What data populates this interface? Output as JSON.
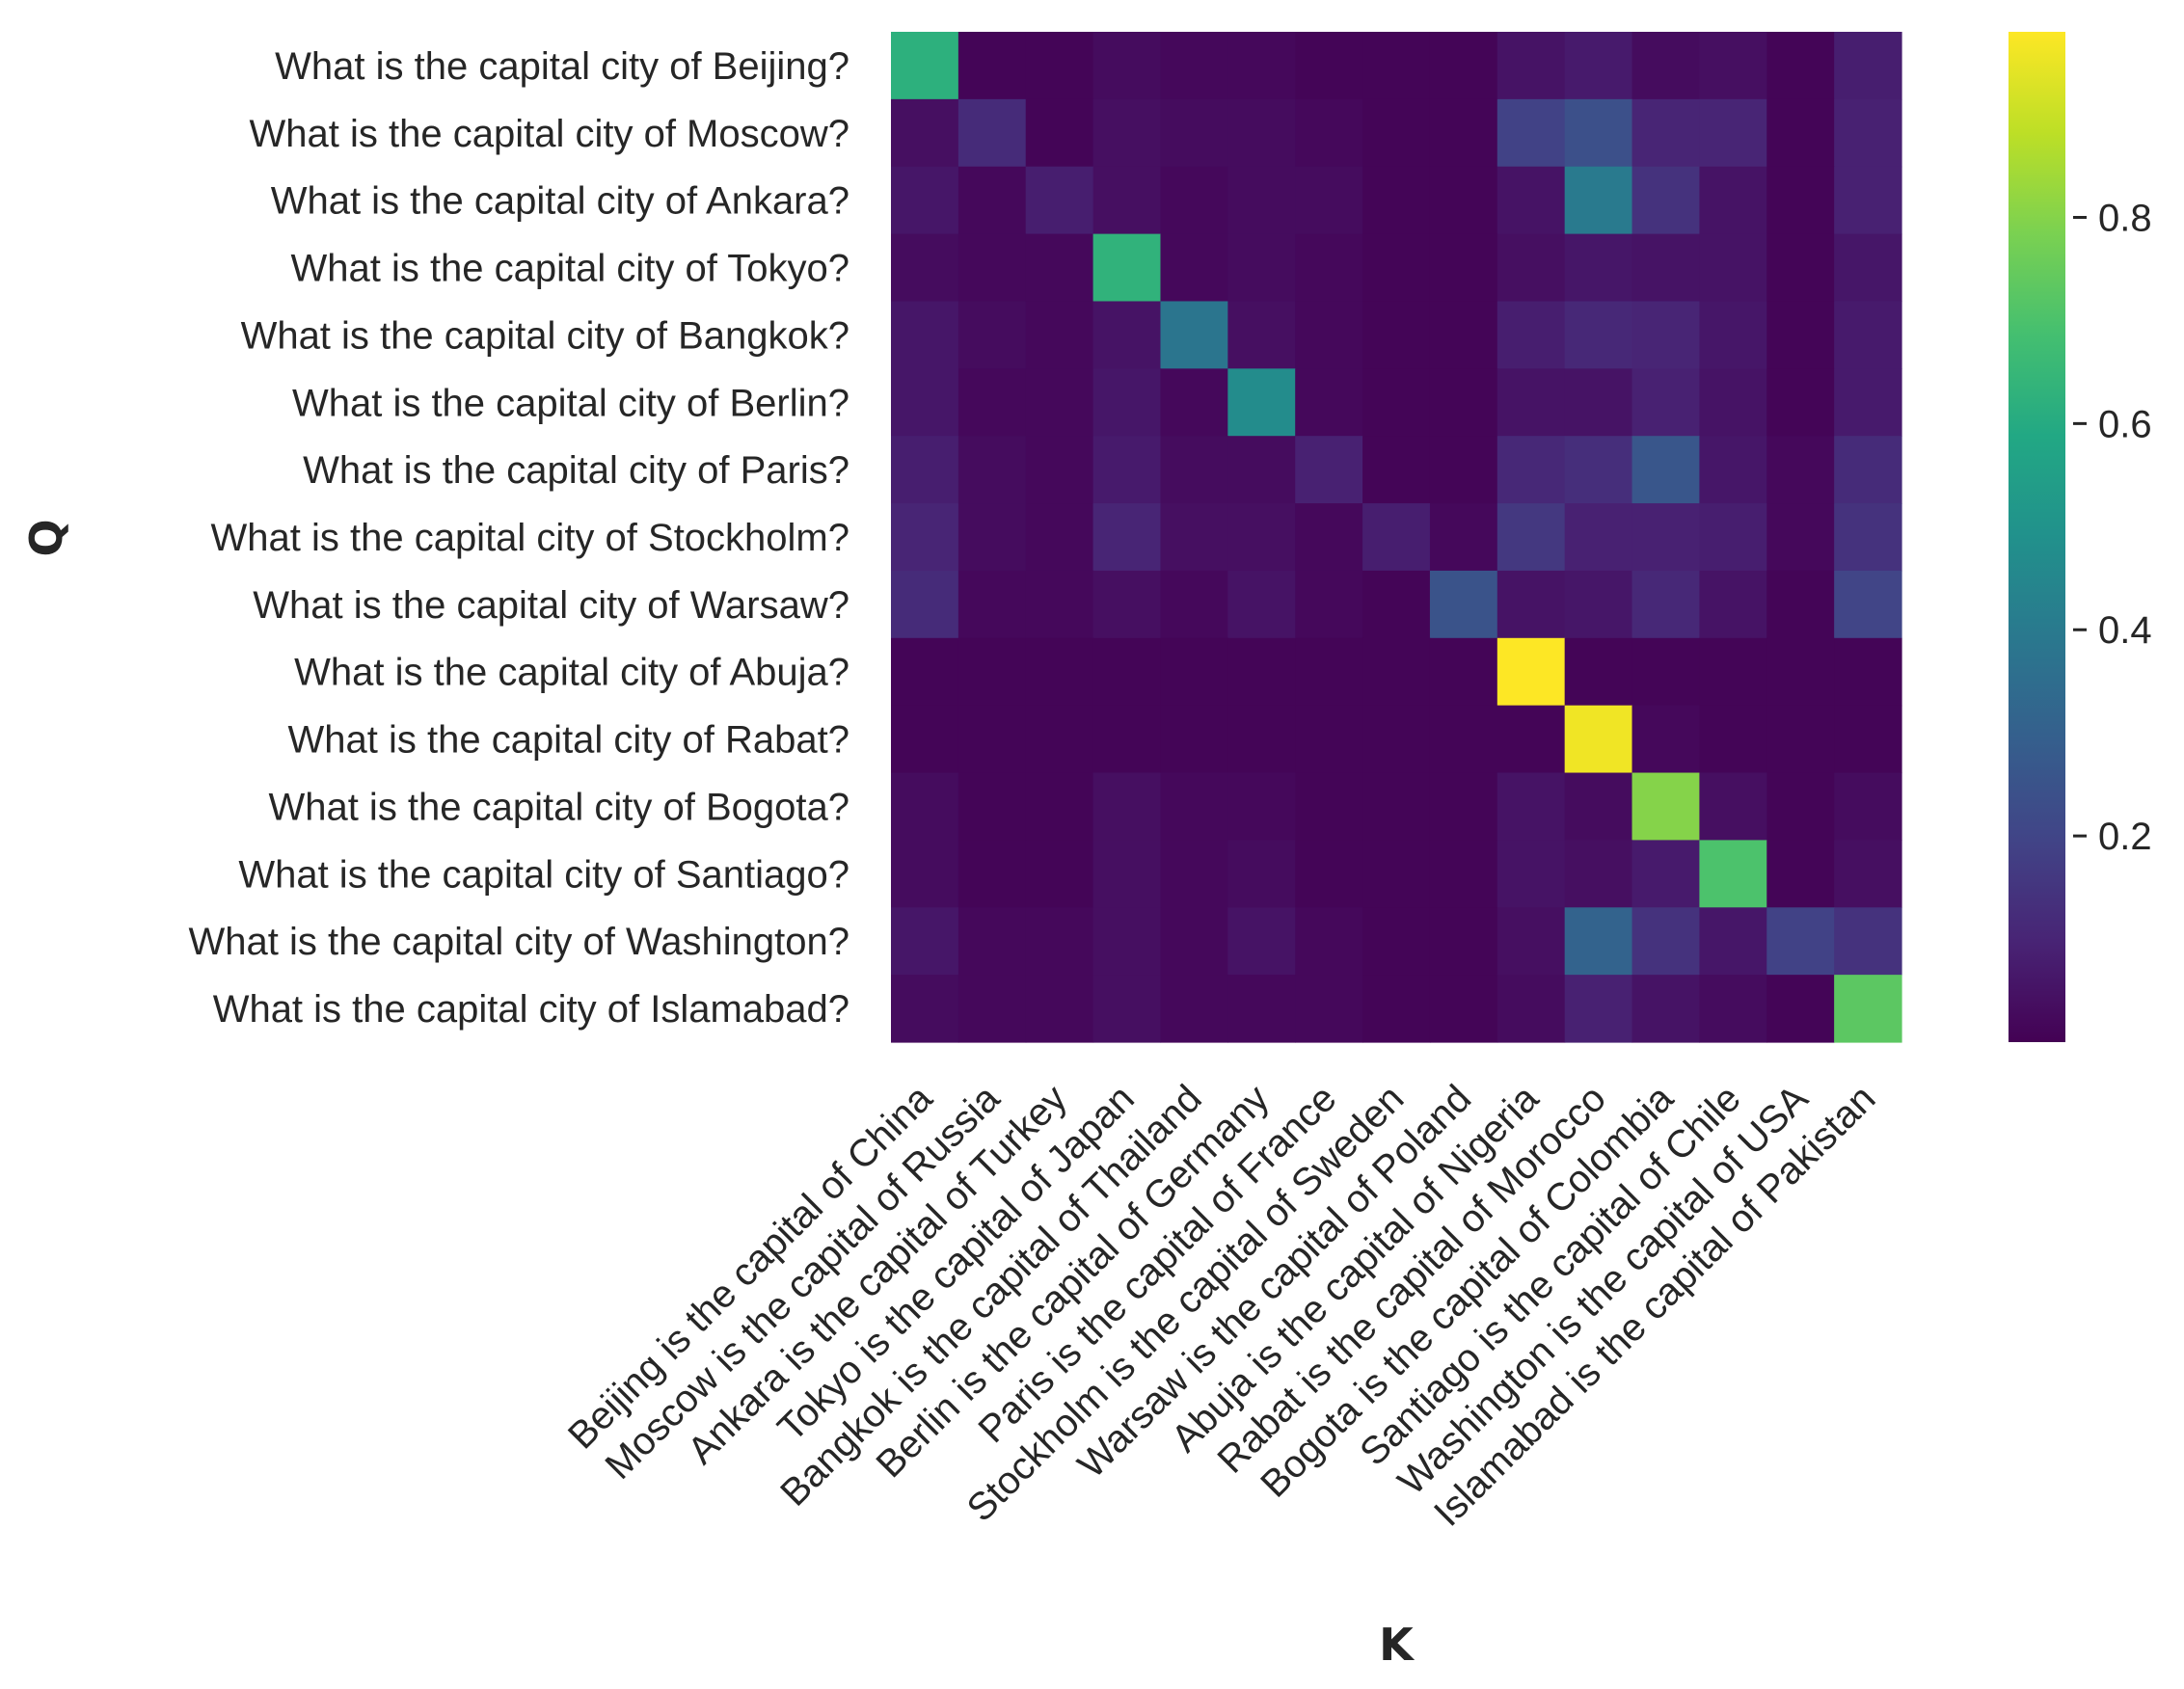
{
  "chart_data": {
    "type": "heatmap",
    "xlabel": "K",
    "ylabel": "Q",
    "colormap": "viridis",
    "colorbar": {
      "range": [
        0.0,
        0.98
      ],
      "ticks": [
        0.2,
        0.4,
        0.6,
        0.8
      ],
      "tick_labels": [
        "0.2",
        "0.4",
        "0.6",
        "0.8"
      ]
    },
    "rows": [
      "What is the capital city of Beijing?",
      "What is the capital city of Moscow?",
      "What is the capital city of Ankara?",
      "What is the capital city of Tokyo?",
      "What is the capital city of Bangkok?",
      "What is the capital city of Berlin?",
      "What is the capital city of Paris?",
      "What is the capital city of Stockholm?",
      "What is the capital city of Warsaw?",
      "What is the capital city of Abuja?",
      "What is the capital city of Rabat?",
      "What is the capital city of Bogota?",
      "What is the capital city of Santiago?",
      "What is the capital city of Washington?",
      "What is the capital city of Islamabad?"
    ],
    "columns": [
      "Beijing is the capital of China",
      "Moscow is the capital of Russia",
      "Ankara is the capital of Turkey",
      "Tokyo is the capital of Japan",
      "Bangkok is the capital of Thailand",
      "Berlin is the capital of Germany",
      "Paris is the capital of France",
      "Stockholm is the capital of Sweden",
      "Warsaw is the capital of Poland",
      "Abuja is the capital of Nigeria",
      "Rabat is the capital of Morocco",
      "Bogota is the capital of Colombia",
      "Santiago is the capital of Chile",
      "Washington is the capital of USA",
      "Islamabad is the capital of Pakistan"
    ],
    "values": [
      [
        0.62,
        0.01,
        0.01,
        0.03,
        0.02,
        0.02,
        0.01,
        0.01,
        0.01,
        0.05,
        0.07,
        0.03,
        0.04,
        0.01,
        0.08
      ],
      [
        0.04,
        0.12,
        0.01,
        0.04,
        0.03,
        0.03,
        0.02,
        0.01,
        0.01,
        0.19,
        0.24,
        0.1,
        0.1,
        0.01,
        0.09
      ],
      [
        0.06,
        0.02,
        0.08,
        0.04,
        0.02,
        0.03,
        0.03,
        0.01,
        0.01,
        0.05,
        0.4,
        0.14,
        0.05,
        0.01,
        0.09
      ],
      [
        0.03,
        0.02,
        0.02,
        0.63,
        0.02,
        0.03,
        0.02,
        0.01,
        0.01,
        0.04,
        0.06,
        0.05,
        0.05,
        0.01,
        0.06
      ],
      [
        0.06,
        0.03,
        0.02,
        0.05,
        0.38,
        0.04,
        0.02,
        0.01,
        0.01,
        0.08,
        0.11,
        0.1,
        0.06,
        0.01,
        0.07
      ],
      [
        0.06,
        0.02,
        0.02,
        0.06,
        0.02,
        0.47,
        0.02,
        0.01,
        0.01,
        0.05,
        0.05,
        0.09,
        0.05,
        0.01,
        0.07
      ],
      [
        0.08,
        0.03,
        0.02,
        0.07,
        0.03,
        0.03,
        0.09,
        0.01,
        0.01,
        0.11,
        0.13,
        0.26,
        0.06,
        0.02,
        0.12
      ],
      [
        0.1,
        0.03,
        0.02,
        0.1,
        0.04,
        0.04,
        0.02,
        0.08,
        0.02,
        0.16,
        0.09,
        0.09,
        0.08,
        0.02,
        0.14
      ],
      [
        0.12,
        0.02,
        0.02,
        0.04,
        0.02,
        0.05,
        0.02,
        0.01,
        0.25,
        0.05,
        0.06,
        0.11,
        0.05,
        0.01,
        0.2
      ],
      [
        0.01,
        0.01,
        0.01,
        0.01,
        0.01,
        0.01,
        0.01,
        0.01,
        0.01,
        0.98,
        0.01,
        0.01,
        0.01,
        0.01,
        0.01
      ],
      [
        0.01,
        0.01,
        0.01,
        0.01,
        0.01,
        0.01,
        0.01,
        0.01,
        0.01,
        0.01,
        0.96,
        0.02,
        0.01,
        0.01,
        0.01
      ],
      [
        0.03,
        0.01,
        0.01,
        0.04,
        0.02,
        0.02,
        0.01,
        0.01,
        0.01,
        0.05,
        0.03,
        0.8,
        0.04,
        0.01,
        0.03
      ],
      [
        0.03,
        0.01,
        0.01,
        0.04,
        0.02,
        0.03,
        0.01,
        0.01,
        0.01,
        0.05,
        0.04,
        0.07,
        0.7,
        0.01,
        0.04
      ],
      [
        0.06,
        0.02,
        0.02,
        0.04,
        0.02,
        0.05,
        0.02,
        0.01,
        0.01,
        0.04,
        0.31,
        0.14,
        0.06,
        0.19,
        0.14
      ],
      [
        0.03,
        0.02,
        0.02,
        0.04,
        0.02,
        0.02,
        0.02,
        0.01,
        0.01,
        0.03,
        0.09,
        0.05,
        0.03,
        0.01,
        0.73
      ]
    ]
  }
}
